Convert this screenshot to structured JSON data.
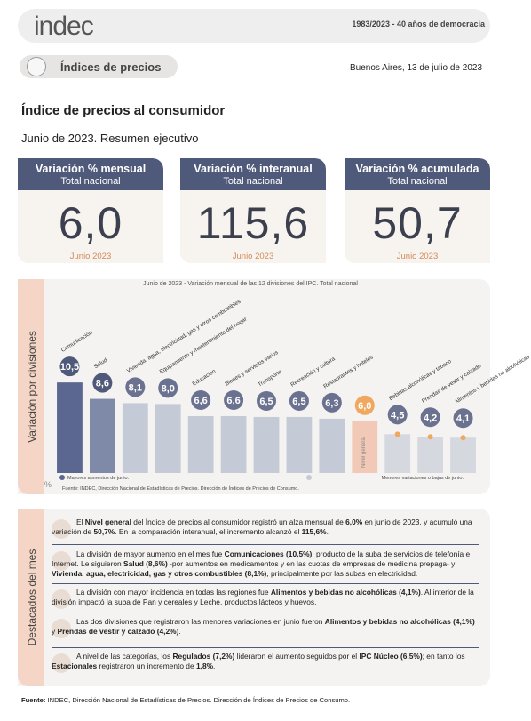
{
  "header": {
    "logo": "indec",
    "tagline": "1983/2023 - 40 años de democracia",
    "section": "Índices de precios",
    "date": "Buenos Aires, 13 de julio de 2023"
  },
  "title": "Índice de precios al consumidor",
  "subtitle": "Junio de 2023. Resumen ejecutivo",
  "kpis": [
    {
      "title": "Variación % mensual",
      "scope": "Total nacional",
      "value": "6,0",
      "period": "Junio 2023"
    },
    {
      "title": "Variación % interanual",
      "scope": "Total nacional",
      "value": "115,6",
      "period": "Junio 2023"
    },
    {
      "title": "Variación % acumulada",
      "scope": "Total nacional",
      "value": "50,7",
      "period": "Junio 2023"
    }
  ],
  "chart_data": {
    "type": "bar",
    "title": "Junio de 2023 - Variación mensual de las 12 divisiones del IPC. Total nacional",
    "side_label": "Variación por divisiones",
    "unit": "%",
    "categories": [
      "Comunicación",
      "Salud",
      "Vivienda, agua, electricidad, gas y otros combustibles",
      "Equipamiento y mantenimiento del hogar",
      "Educación",
      "Bienes y servicios varios",
      "Transporte",
      "Recreación y cultura",
      "Restaurantes y hoteles",
      "Nivel general",
      "Bebidas alcohólicas y tabaco",
      "Prendas de vestir y calzado",
      "Alimentos y bebidas no alcohólicas"
    ],
    "values": [
      10.5,
      8.6,
      8.1,
      8.0,
      6.6,
      6.6,
      6.5,
      6.5,
      6.3,
      6.0,
      4.5,
      4.2,
      4.1
    ],
    "value_labels": [
      "10,5",
      "8,6",
      "8,1",
      "8,0",
      "6,6",
      "6,6",
      "6,5",
      "6,5",
      "6,3",
      "6,0",
      "4,5",
      "4,2",
      "4,1"
    ],
    "colors": [
      "#5b6790",
      "#7f8aa8",
      "#c4cad6",
      "#c4cad6",
      "#c4cad6",
      "#c4cad6",
      "#c4cad6",
      "#c4cad6",
      "#c4cad6",
      "#f2c9b6",
      "#d5d8de",
      "#d5d8de",
      "#d5d8de"
    ],
    "ylim": [
      0,
      20
    ],
    "legend": [
      {
        "name": "Mayores aumentos de junio.",
        "color": "#5b6790"
      },
      {
        "name": "Menores variaciones o bajas de junio.",
        "color": "#c4cad6"
      }
    ],
    "source": "Fuente: INDEC, Dirección Nacional de Estadísticas de Precios. Dirección de Índices de Precios de Consumo."
  },
  "highlights": {
    "side_label": "Destacados del mes",
    "items": [
      [
        "El ",
        "Nivel general",
        " del Índice de precios al consumidor registró un alza mensual de ",
        "6,0%",
        " en junio de 2023, y acumuló una variación de ",
        "50,7%",
        ". En la comparación interanual, el incremento alcanzó el ",
        "115,6%",
        "."
      ],
      [
        "La división de mayor aumento en el mes fue ",
        "Comunicaciones (10,5%)",
        ", producto de la suba de servicios de telefonía e Internet. Le siguieron ",
        "Salud (8,6%)",
        " -por aumentos en medicamentos y en las cuotas de empresas de medicina prepaga- y ",
        "Vivienda, agua, electricidad, gas y otros combustibles (8,1%)",
        ", principalmente por las subas en electricidad."
      ],
      [
        "La división con mayor incidencia en todas las regiones fue ",
        "Alimentos y bebidas no alcohólicas (4,1%)",
        ". Al interior de la división impactó la suba de Pan y cereales y Leche, productos lácteos y huevos."
      ],
      [
        "Las dos divisiones que registraron las menores variaciones en junio fueron ",
        "Alimentos y bebidas no alcohólicas (4,1%)",
        " y ",
        "Prendas de vestir y calzado (4,2%)",
        "."
      ],
      [
        "A nivel de las categorías, los ",
        "Regulados (7,2%)",
        " lideraron el aumento seguidos por el ",
        "IPC Núcleo (6,5%)",
        "; en tanto los ",
        "Estacionales",
        " registraron un incremento de ",
        "1,8%",
        "."
      ]
    ]
  },
  "footer": {
    "label": "Fuente:",
    "text": " INDEC, Dirección Nacional de Estadísticas de Precios. Dirección de Índices de Precios de Consumo."
  }
}
